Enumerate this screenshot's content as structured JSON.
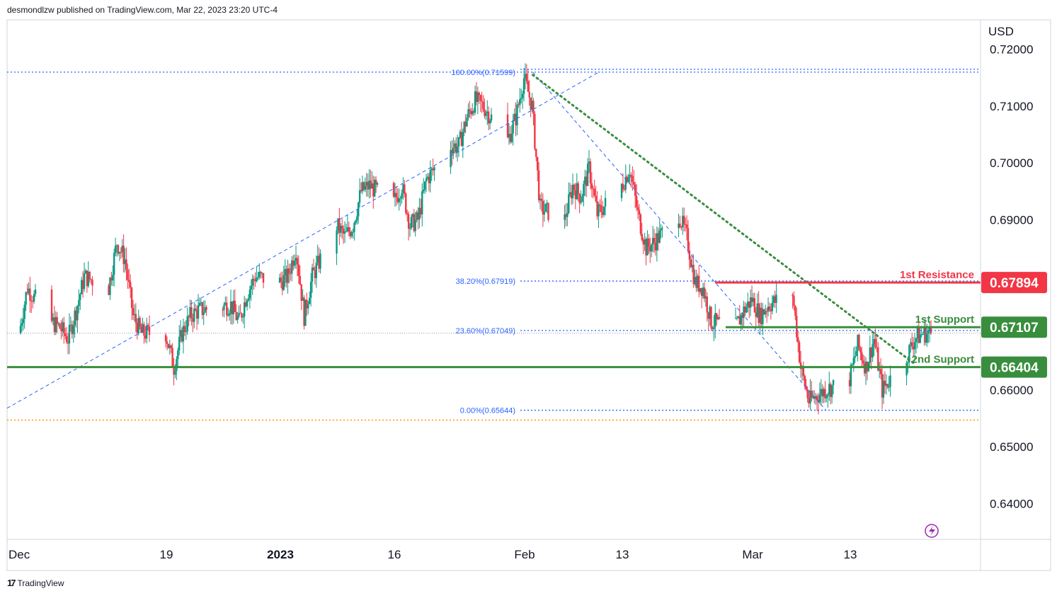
{
  "header": {
    "publisher_line": "desmondlzw published on TradingView.com, Mar 22, 2023 23:20 UTC-4"
  },
  "footer": {
    "brand": "TradingView",
    "brand_mark": "17"
  },
  "colors": {
    "up": "#26a69a",
    "up_body": "#089981",
    "down": "#f23645",
    "green_level": "#388e3c",
    "red_level": "#f23645",
    "fib": "#2962ff",
    "trend": "#388e3c",
    "orange": "#ff9800",
    "axis_text": "#131722",
    "grid": "#e0e3eb"
  },
  "chart_data": {
    "type": "candlestick",
    "symbol_currency": "USD",
    "y_ticks": [
      "0.72000",
      "0.71000",
      "0.70000",
      "0.69000",
      "0.68000",
      "0.67000",
      "0.66000",
      "0.65000",
      "0.64000"
    ],
    "y_tick_values": [
      0.72,
      0.71,
      0.7,
      0.69,
      0.68,
      0.67,
      0.66,
      0.65,
      0.64
    ],
    "ylim": [
      0.6337,
      0.7252
    ],
    "x_ticks": [
      {
        "label": "Dec",
        "date": "2022-12-01",
        "bold": false
      },
      {
        "label": "19",
        "date": "2022-12-19",
        "bold": false
      },
      {
        "label": "2023",
        "date": "2023-01-02",
        "bold": true
      },
      {
        "label": "16",
        "date": "2023-01-16",
        "bold": false
      },
      {
        "label": "Feb",
        "date": "2023-02-01",
        "bold": false
      },
      {
        "label": "13",
        "date": "2023-02-13",
        "bold": false
      },
      {
        "label": "Mar",
        "date": "2023-03-01",
        "bold": false
      },
      {
        "label": "13",
        "date": "2023-03-13",
        "bold": false
      }
    ],
    "price_path": [
      [
        "2022-12-01",
        0.67
      ],
      [
        "2022-12-02",
        0.678
      ],
      [
        "2022-12-05",
        0.672
      ],
      [
        "2022-12-06",
        0.671
      ],
      [
        "2022-12-07",
        0.669
      ],
      [
        "2022-12-08",
        0.674
      ],
      [
        "2022-12-09",
        0.68
      ],
      [
        "2022-12-12",
        0.678
      ],
      [
        "2022-12-13",
        0.686
      ],
      [
        "2022-12-14",
        0.683
      ],
      [
        "2022-12-15",
        0.673
      ],
      [
        "2022-12-16",
        0.67
      ],
      [
        "2022-12-19",
        0.67
      ],
      [
        "2022-12-20",
        0.664
      ],
      [
        "2022-12-21",
        0.67
      ],
      [
        "2022-12-22",
        0.673
      ],
      [
        "2022-12-23",
        0.674
      ],
      [
        "2022-12-27",
        0.675
      ],
      [
        "2022-12-28",
        0.672
      ],
      [
        "2022-12-29",
        0.677
      ],
      [
        "2022-12-30",
        0.68
      ],
      [
        "2023-01-02",
        0.679
      ],
      [
        "2023-01-03",
        0.68
      ],
      [
        "2023-01-04",
        0.685
      ],
      [
        "2023-01-05",
        0.673
      ],
      [
        "2023-01-06",
        0.68
      ],
      [
        "2023-01-09",
        0.689
      ],
      [
        "2023-01-10",
        0.687
      ],
      [
        "2023-01-11",
        0.689
      ],
      [
        "2023-01-12",
        0.695
      ],
      [
        "2023-01-13",
        0.696
      ],
      [
        "2023-01-16",
        0.693
      ],
      [
        "2023-01-17",
        0.696
      ],
      [
        "2023-01-18",
        0.689
      ],
      [
        "2023-01-19",
        0.69
      ],
      [
        "2023-01-20",
        0.697
      ],
      [
        "2023-01-23",
        0.703
      ],
      [
        "2023-01-24",
        0.703
      ],
      [
        "2023-01-25",
        0.708
      ],
      [
        "2023-01-26",
        0.711
      ],
      [
        "2023-01-27",
        0.71
      ],
      [
        "2023-01-30",
        0.704
      ],
      [
        "2023-01-31",
        0.708
      ],
      [
        "2023-02-01",
        0.715
      ],
      [
        "2023-02-02",
        0.71
      ],
      [
        "2023-02-03",
        0.692
      ],
      [
        "2023-02-06",
        0.69
      ],
      [
        "2023-02-07",
        0.696
      ],
      [
        "2023-02-08",
        0.694
      ],
      [
        "2023-02-09",
        0.699
      ],
      [
        "2023-02-10",
        0.691
      ],
      [
        "2023-02-13",
        0.696
      ],
      [
        "2023-02-14",
        0.699
      ],
      [
        "2023-02-15",
        0.691
      ],
      [
        "2023-02-16",
        0.685
      ],
      [
        "2023-02-17",
        0.686
      ],
      [
        "2023-02-20",
        0.691
      ],
      [
        "2023-02-21",
        0.687
      ],
      [
        "2023-02-22",
        0.679
      ],
      [
        "2023-02-23",
        0.678
      ],
      [
        "2023-02-24",
        0.672
      ],
      [
        "2023-02-27",
        0.671
      ],
      [
        "2023-02-28",
        0.674
      ],
      [
        "2023-03-01",
        0.676
      ],
      [
        "2023-03-02",
        0.673
      ],
      [
        "2023-03-03",
        0.675
      ],
      [
        "2023-03-06",
        0.677
      ],
      [
        "2023-03-07",
        0.664
      ],
      [
        "2023-03-08",
        0.658
      ],
      [
        "2023-03-09",
        0.659
      ],
      [
        "2023-03-10",
        0.66
      ],
      [
        "2023-03-13",
        0.662
      ],
      [
        "2023-03-14",
        0.668
      ],
      [
        "2023-03-15",
        0.664
      ],
      [
        "2023-03-16",
        0.669
      ],
      [
        "2023-03-17",
        0.66
      ],
      [
        "2023-03-20",
        0.666
      ],
      [
        "2023-03-21",
        0.669
      ],
      [
        "2023-03-22",
        0.67
      ]
    ],
    "levels": [
      {
        "name": "1st Resistance",
        "price": 0.67894,
        "label": "0.67894",
        "color": "#f23645",
        "text_color": "#f23645"
      },
      {
        "name": "1st Support",
        "price": 0.67107,
        "label": "0.67107",
        "color": "#388e3c",
        "text_color": "#388e3c"
      },
      {
        "name": "2nd Support",
        "price": 0.66404,
        "label": "0.66404",
        "color": "#388e3c",
        "text_color": "#388e3c"
      }
    ],
    "fib_levels": [
      {
        "label": "100.00%(0.71599)",
        "price": 0.71599
      },
      {
        "label": "38.20%(0.67919)",
        "price": 0.67919
      },
      {
        "label": "23.60%(0.67049)",
        "price": 0.67049
      },
      {
        "label": "0.00%(0.65644)",
        "price": 0.65644
      }
    ],
    "orange_level": 0.6547,
    "grid": false,
    "legend": "none"
  }
}
